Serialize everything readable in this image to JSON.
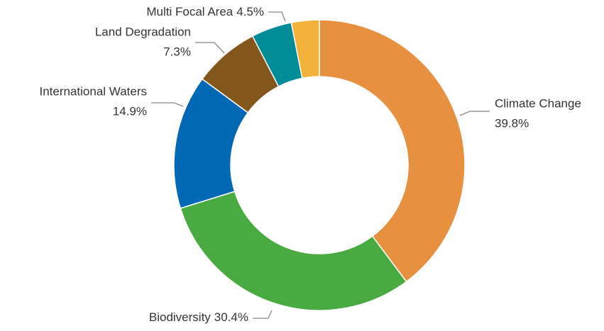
{
  "chart_data": {
    "type": "donut",
    "categories": [
      "Climate Change",
      "Biodiversity",
      "International Waters",
      "Land Degradation",
      "Multi Focal Area",
      null
    ],
    "values": [
      39.8,
      30.4,
      14.9,
      7.3,
      4.5,
      3.1
    ],
    "value_labels": [
      "39.8%",
      "30.4%",
      "14.9%",
      "7.3%",
      "4.5%",
      null
    ],
    "colors": [
      "#E69040",
      "#4AAA42",
      "#0068B5",
      "#83561B",
      "#008C96",
      "#F3B23A"
    ]
  }
}
